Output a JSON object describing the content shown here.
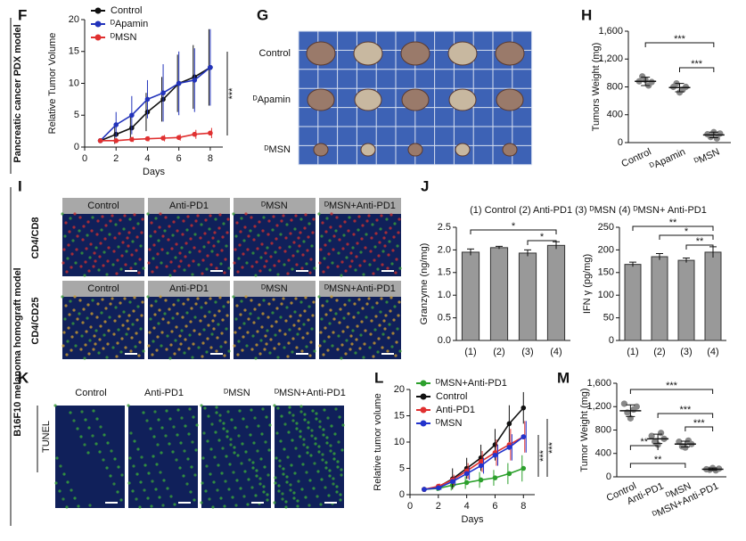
{
  "panels": {
    "letters": [
      "F",
      "G",
      "H",
      "I",
      "J",
      "K",
      "L",
      "M"
    ],
    "side_labels": [
      "Pancreatic cancer PDX model",
      "B16F10 melanoma homograft model"
    ],
    "G_rows": [
      "Control",
      "ᴰApamin",
      "ᴰMSN"
    ],
    "I_cols": [
      "Control",
      "Anti-PD1",
      "ᴰMSN",
      "ᴰMSN+Anti-PD1"
    ],
    "I_rows": [
      "CD4/CD8",
      "CD4/CD25"
    ],
    "K_cols": [
      "Control",
      "Anti-PD1",
      "ᴰMSN",
      "ᴰMSN+Anti-PD1"
    ],
    "K_side": "TUNEL",
    "J_title": "(1) Control (2) Anti-PD1 (3) ᴰMSN (4) ᴰMSN+ Anti-PD1"
  },
  "chart_data": [
    {
      "type": "line",
      "xlabel": "Days",
      "ylabel": "Relative Tumor Volume",
      "x": [
        1,
        2,
        3,
        4,
        5,
        6,
        7,
        8
      ],
      "xlim": [
        0,
        8.8
      ],
      "xticks": [
        0,
        2,
        4,
        6,
        8
      ],
      "ylim": [
        0,
        20
      ],
      "yticks": [
        0,
        5,
        10,
        15,
        20
      ],
      "series": [
        {
          "name": "Control",
          "color": "#111111",
          "values": [
            1,
            2,
            3,
            5.5,
            7.5,
            10,
            11,
            12.5
          ],
          "errors": [
            0.2,
            1.5,
            2,
            3,
            3.5,
            4.5,
            5,
            6
          ]
        },
        {
          "name": "ᴰApamin",
          "color": "#2233bb",
          "values": [
            1,
            3.5,
            5,
            7.5,
            8.5,
            10,
            10.5,
            12.5
          ],
          "errors": [
            0.2,
            2,
            3,
            3,
            4.5,
            5,
            5,
            6
          ]
        },
        {
          "name": "ᴰMSN",
          "color": "#e03030",
          "values": [
            1,
            1,
            1.2,
            1.3,
            1.4,
            1.5,
            2,
            2.2
          ],
          "errors": [
            0.1,
            0.3,
            0.4,
            0.4,
            0.5,
            0.5,
            0.7,
            0.8
          ]
        }
      ],
      "annotations": [
        "***"
      ]
    },
    {
      "type": "dot",
      "ylabel": "Tumors Weight (mg)",
      "color": "#888888",
      "categories": [
        "Control",
        "ᴰApamin",
        "ᴰMSN"
      ],
      "points": [
        [
          880,
          950,
          900,
          820,
          870
        ],
        [
          800,
          850,
          720,
          760,
          800
        ],
        [
          120,
          80,
          150,
          60,
          130
        ]
      ],
      "means": [
        880,
        790,
        110
      ],
      "errors": [
        60,
        60,
        40
      ],
      "ylim": [
        0,
        1600
      ],
      "yticks": [
        0,
        400,
        800,
        {
          "value": 1200,
          "label": "1,200"
        },
        {
          "value": 1600,
          "label": "1,600"
        }
      ],
      "annotations": [
        "***",
        "***"
      ]
    },
    {
      "type": "bar",
      "ylabel": "Granzyme (ng/mg)",
      "color": "#999999",
      "categories": [
        "(1)",
        "(2)",
        "(3)",
        "(4)"
      ],
      "values": [
        1.95,
        2.05,
        1.93,
        2.1
      ],
      "errors": [
        0.07,
        0.03,
        0.07,
        0.08
      ],
      "ylim": [
        0,
        2.5
      ],
      "yticks": [
        {
          "value": 0,
          "label": "0.0"
        },
        0.5,
        {
          "value": 1,
          "label": "1.0"
        },
        1.5,
        {
          "value": 2,
          "label": "2.0"
        },
        2.5
      ],
      "annotations": [
        "*",
        "*"
      ]
    },
    {
      "type": "bar",
      "ylabel": "IFN γ (pg/mg)",
      "color": "#999999",
      "categories": [
        "(1)",
        "(2)",
        "(3)",
        "(4)"
      ],
      "values": [
        168,
        185,
        177,
        195
      ],
      "errors": [
        5,
        7,
        5,
        12
      ],
      "ylim": [
        0,
        250
      ],
      "yticks": [
        0,
        50,
        100,
        150,
        200,
        250
      ],
      "annotations": [
        "**",
        "*",
        "**"
      ]
    },
    {
      "type": "line",
      "xlabel": "Days",
      "ylabel": "Relative tumor volume",
      "x": [
        1,
        2,
        3,
        4,
        5,
        6,
        7,
        8
      ],
      "xlim": [
        0,
        8.8
      ],
      "xticks": [
        0,
        2,
        4,
        6,
        8
      ],
      "ylim": [
        0,
        20
      ],
      "yticks": [
        0,
        5,
        10,
        15,
        20
      ],
      "series": [
        {
          "name": "ᴰMSN+Anti-PD1",
          "color": "#2ca02c",
          "values": [
            1,
            1.2,
            1.8,
            2.3,
            2.8,
            3.2,
            4,
            5
          ],
          "errors": [
            0.1,
            0.5,
            1,
            1.2,
            1.5,
            1.5,
            2,
            2.5
          ]
        },
        {
          "name": "Control",
          "color": "#111111",
          "values": [
            1,
            1.5,
            3,
            5,
            7,
            9.5,
            13.5,
            16.5
          ],
          "errors": [
            0.1,
            0.5,
            2,
            2,
            2.5,
            3,
            3.5,
            3
          ]
        },
        {
          "name": "Anti-PD1",
          "color": "#e03030",
          "values": [
            1,
            1.6,
            2.8,
            4.5,
            6.3,
            8,
            9.5,
            11
          ],
          "errors": [
            0.1,
            0.5,
            1,
            1.5,
            2,
            2.5,
            3,
            3
          ]
        },
        {
          "name": "ᴰMSN",
          "color": "#2233cc",
          "values": [
            1,
            1.3,
            2.5,
            4,
            5.5,
            7.5,
            9,
            11
          ],
          "errors": [
            0.1,
            0.4,
            0.8,
            1.2,
            1.5,
            2,
            2.5,
            3
          ]
        }
      ],
      "annotations": [
        "***",
        "***"
      ]
    },
    {
      "type": "dot",
      "ylabel": "Tumor Weight (mg)",
      "color": "#888888",
      "categories": [
        "Control",
        "Anti-PD1",
        "ᴰMSN",
        "ᴰMSN+Anti-PD1"
      ],
      "points": [
        [
          1250,
          1100,
          1000,
          1150,
          1200
        ],
        [
          700,
          600,
          550,
          750,
          650
        ],
        [
          600,
          520,
          500,
          620,
          560
        ],
        [
          130,
          120,
          150,
          110,
          140
        ]
      ],
      "means": [
        1130,
        650,
        560,
        130
      ],
      "errors": [
        100,
        80,
        50,
        20
      ],
      "ylim": [
        0,
        1600
      ],
      "yticks": [
        0,
        400,
        800,
        {
          "value": 1200,
          "label": "1,200"
        },
        {
          "value": 1600,
          "label": "1,600"
        }
      ],
      "annotations": [
        "***",
        "***",
        "***",
        "**",
        "**"
      ]
    }
  ]
}
